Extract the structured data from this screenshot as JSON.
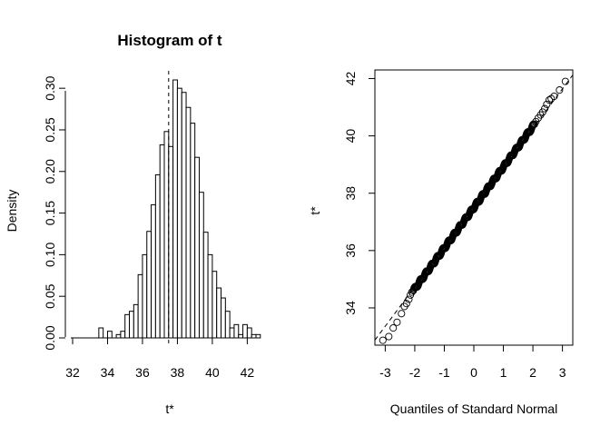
{
  "chart_data": [
    {
      "type": "bar",
      "title": "Histogram of t",
      "xlabel": "t*",
      "ylabel": "Density",
      "xlim": [
        32,
        42.5
      ],
      "ylim": [
        0,
        0.31
      ],
      "bin_width": 0.25,
      "bin_start": 32.25,
      "values": [
        0,
        0,
        0,
        0,
        0,
        0.012,
        0,
        0.008,
        0,
        0.004,
        0.008,
        0.028,
        0.032,
        0.04,
        0.076,
        0.1,
        0.128,
        0.16,
        0.196,
        0.232,
        0.248,
        0.23,
        0.31,
        0.3,
        0.295,
        0.277,
        0.258,
        0.217,
        0.175,
        0.127,
        0.1,
        0.08,
        0.06,
        0.048,
        0.032,
        0.012,
        0.016,
        0.004,
        0.016,
        0.012,
        0.004,
        0.004
      ],
      "reference_line_x": 37.5,
      "xticks": [
        "32",
        "34",
        "36",
        "38",
        "40",
        "42"
      ],
      "yticks": [
        "0.00",
        "0.05",
        "0.10",
        "0.15",
        "0.20",
        "0.25",
        "0.30"
      ],
      "grid": false
    },
    {
      "type": "scatter",
      "title": "",
      "xlabel": "Quantiles of Standard Normal",
      "ylabel": "t*",
      "xlim": [
        -3.35,
        3.35
      ],
      "ylim": [
        32.7,
        42.3
      ],
      "points": [
        [
          -3.08,
          32.87
        ],
        [
          -2.88,
          33.0
        ],
        [
          -2.73,
          33.3
        ],
        [
          -2.6,
          33.5
        ],
        [
          -2.45,
          33.8
        ],
        [
          -2.35,
          34.05
        ],
        [
          -2.28,
          34.15
        ],
        [
          -2.2,
          34.3
        ],
        [
          -2.15,
          34.45
        ],
        [
          -2.1,
          34.55
        ],
        [
          2.1,
          40.5
        ],
        [
          2.18,
          40.62
        ],
        [
          2.26,
          40.73
        ],
        [
          2.33,
          40.83
        ],
        [
          2.4,
          40.95
        ],
        [
          2.47,
          41.1
        ],
        [
          2.55,
          41.25
        ],
        [
          2.62,
          41.3
        ],
        [
          2.72,
          41.38
        ],
        [
          2.9,
          41.6
        ],
        [
          3.1,
          41.9
        ]
      ],
      "dense_segment": {
        "x_from": -2.05,
        "x_to": 2.05,
        "y_from": 34.6,
        "y_to": 40.4,
        "count": 320
      },
      "reference_line": {
        "intercept": 37.5,
        "slope": 1.38
      },
      "xticks": [
        "-3",
        "-2",
        "-1",
        "0",
        "1",
        "2",
        "3"
      ],
      "yticks": [
        "34",
        "36",
        "38",
        "40",
        "42"
      ],
      "grid": false
    }
  ]
}
